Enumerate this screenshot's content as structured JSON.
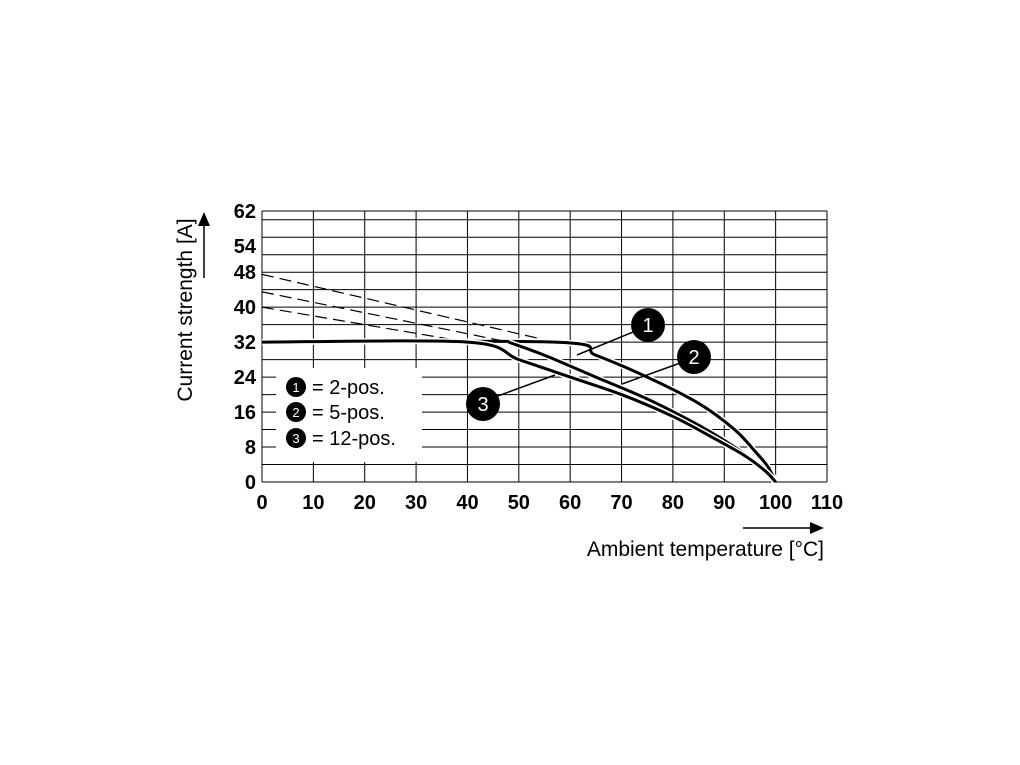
{
  "chart_data": {
    "type": "line",
    "xlabel": "Ambient temperature [°C]",
    "ylabel": "Current strength [A]",
    "xlim": [
      0,
      110
    ],
    "ylim": [
      0,
      62
    ],
    "x_ticks": [
      "0",
      "10",
      "20",
      "30",
      "40",
      "50",
      "60",
      "70",
      "80",
      "90",
      "100",
      "110"
    ],
    "y_ticks": [
      "0",
      "8",
      "16",
      "24",
      "32",
      "40",
      "48",
      "54",
      "62"
    ],
    "grid": true,
    "series": [
      {
        "id": "1",
        "dashed": [
          [
            0,
            47.5
          ],
          [
            57,
            32
          ]
        ],
        "solid": [
          [
            0,
            32
          ],
          [
            57,
            32
          ],
          [
            65,
            29
          ],
          [
            75,
            24
          ],
          [
            85,
            18
          ],
          [
            92,
            12
          ],
          [
            96,
            7
          ],
          [
            98.5,
            3.5
          ],
          [
            100,
            0
          ]
        ]
      },
      {
        "id": "2",
        "dashed": [
          [
            0,
            43.5
          ],
          [
            48,
            32
          ]
        ],
        "solid": [
          [
            48,
            32
          ],
          [
            55,
            29
          ],
          [
            65,
            24
          ],
          [
            75,
            19
          ],
          [
            85,
            13
          ],
          [
            92,
            8
          ],
          [
            96,
            4.5
          ],
          [
            100,
            0
          ]
        ]
      },
      {
        "id": "3",
        "dashed": [
          [
            0,
            40
          ],
          [
            40,
            32
          ]
        ],
        "solid": [
          [
            0,
            32
          ],
          [
            40,
            32
          ],
          [
            50,
            28
          ],
          [
            60,
            24
          ],
          [
            70,
            20
          ],
          [
            80,
            15
          ],
          [
            88,
            10
          ],
          [
            94,
            6
          ],
          [
            98,
            2.5
          ],
          [
            100,
            0
          ]
        ]
      }
    ],
    "legend": [
      {
        "id": "1",
        "text": "= 2-pos."
      },
      {
        "id": "2",
        "text": "= 5-pos."
      },
      {
        "id": "3",
        "text": "= 12-pos."
      }
    ],
    "legend_position": "bottom-left"
  }
}
